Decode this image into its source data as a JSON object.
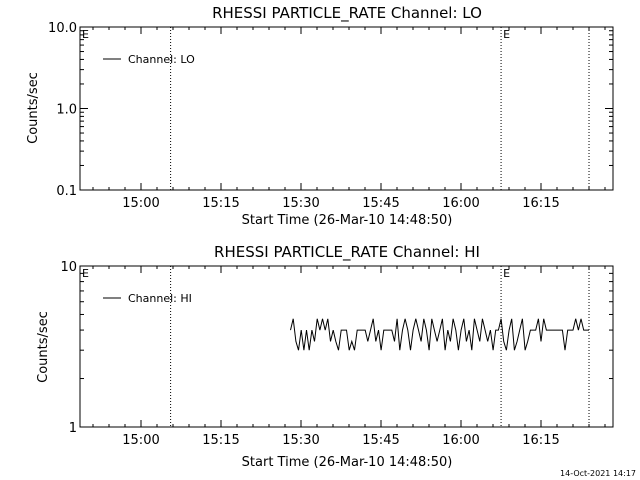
{
  "chart_data": [
    {
      "type": "line",
      "title": "RHESSI PARTICLE_RATE Channel: LO",
      "xlabel": "Start Time (26-Mar-10 14:48:50)",
      "ylabel": "Counts/sec",
      "y_scale": "log",
      "ylim": [
        0.1,
        10.0
      ],
      "y_tick_labels": [
        "0.1",
        "1.0",
        "10.0"
      ],
      "x_tick_labels": [
        "15:00",
        "15:15",
        "15:30",
        "15:45",
        "16:00",
        "16:15"
      ],
      "xlim_minutes_after_start": [
        0,
        100
      ],
      "event_markers": [
        {
          "label": "E",
          "minute": 0
        },
        {
          "label": "",
          "minute": 17
        },
        {
          "label": "E",
          "minute": 79
        },
        {
          "label": "",
          "minute": 95.5
        }
      ],
      "legend": {
        "position": "top-left",
        "entries": [
          "Channel: LO"
        ]
      },
      "series": [
        {
          "name": "Channel: LO",
          "x": [],
          "y": []
        }
      ]
    },
    {
      "type": "line",
      "title": "RHESSI PARTICLE_RATE Channel: HI",
      "xlabel": "Start Time (26-Mar-10 14:48:50)",
      "ylabel": "Counts/sec",
      "y_scale": "log",
      "ylim": [
        1,
        10
      ],
      "y_tick_labels": [
        "1",
        "10"
      ],
      "x_tick_labels": [
        "15:00",
        "15:15",
        "15:30",
        "15:45",
        "16:00",
        "16:15"
      ],
      "xlim_minutes_after_start": [
        0,
        100
      ],
      "event_markers": [
        {
          "label": "E",
          "minute": 0
        },
        {
          "label": "",
          "minute": 17
        },
        {
          "label": "E",
          "minute": 79
        },
        {
          "label": "",
          "minute": 95.5
        }
      ],
      "legend": {
        "position": "top-left",
        "entries": [
          "Channel: HI"
        ]
      },
      "series": [
        {
          "name": "Channel: HI",
          "x": [
            39.5,
            40.0,
            40.5,
            41.0,
            41.5,
            42.0,
            42.5,
            43.0,
            43.5,
            44.0,
            44.5,
            45.0,
            45.5,
            46.0,
            46.5,
            47.0,
            47.5,
            48.0,
            48.5,
            49.0,
            49.5,
            50.0,
            50.5,
            51.0,
            51.5,
            52.0,
            52.5,
            53.0,
            53.5,
            54.0,
            54.5,
            55.0,
            55.5,
            56.0,
            56.5,
            57.0,
            57.5,
            58.0,
            58.5,
            59.0,
            59.5,
            60.0,
            60.5,
            61.0,
            61.5,
            62.0,
            62.5,
            63.0,
            63.5,
            64.0,
            64.5,
            65.0,
            65.5,
            66.0,
            66.5,
            67.0,
            67.5,
            68.0,
            68.5,
            69.0,
            69.5,
            70.0,
            70.5,
            71.0,
            71.5,
            72.0,
            72.5,
            73.0,
            73.5,
            74.0,
            74.5,
            75.0,
            75.5,
            76.0,
            76.5,
            77.0,
            77.5,
            78.0,
            78.5,
            79.0,
            79.5,
            80.0,
            80.5,
            81.0,
            81.5,
            82.0,
            82.5,
            83.0,
            83.5,
            84.0,
            84.5,
            85.0,
            85.5,
            86.0,
            86.5,
            87.0,
            87.5,
            88.0,
            88.5,
            89.0,
            89.5,
            90.0,
            90.5,
            91.0,
            91.5,
            92.0,
            92.5,
            93.0,
            93.5,
            94.0,
            94.5,
            95.0,
            95.5
          ],
          "y": [
            4.0,
            4.7,
            3.4,
            3.0,
            4.0,
            3.0,
            4.0,
            3.0,
            4.0,
            3.4,
            4.7,
            4.0,
            4.7,
            4.0,
            4.7,
            3.4,
            4.0,
            3.4,
            3.0,
            4.0,
            4.0,
            4.0,
            3.0,
            3.4,
            3.0,
            4.0,
            4.0,
            4.0,
            4.0,
            3.4,
            4.0,
            4.7,
            3.4,
            4.0,
            3.0,
            4.0,
            4.0,
            4.0,
            4.0,
            3.4,
            4.7,
            3.0,
            4.0,
            4.7,
            4.0,
            3.0,
            4.0,
            4.7,
            4.0,
            3.4,
            4.7,
            4.0,
            3.0,
            4.7,
            4.0,
            3.4,
            4.0,
            4.7,
            3.0,
            4.0,
            3.4,
            4.7,
            4.0,
            3.0,
            4.0,
            4.7,
            3.4,
            4.0,
            3.0,
            4.7,
            4.0,
            3.4,
            4.7,
            4.0,
            3.4,
            4.0,
            3.0,
            4.0,
            4.0,
            4.7,
            3.4,
            3.0,
            4.0,
            4.7,
            3.0,
            3.4,
            4.0,
            4.7,
            3.0,
            3.4,
            4.0,
            4.0,
            4.0,
            4.7,
            3.4,
            4.7,
            4.0,
            4.0,
            4.0,
            4.0,
            4.0,
            4.0,
            4.0,
            3.0,
            4.0,
            4.0,
            4.0,
            4.7,
            4.0,
            4.7,
            4.0,
            4.0,
            4.0
          ]
        }
      ]
    }
  ],
  "footer": {
    "timestamp": "14-Oct-2021 14:17"
  }
}
